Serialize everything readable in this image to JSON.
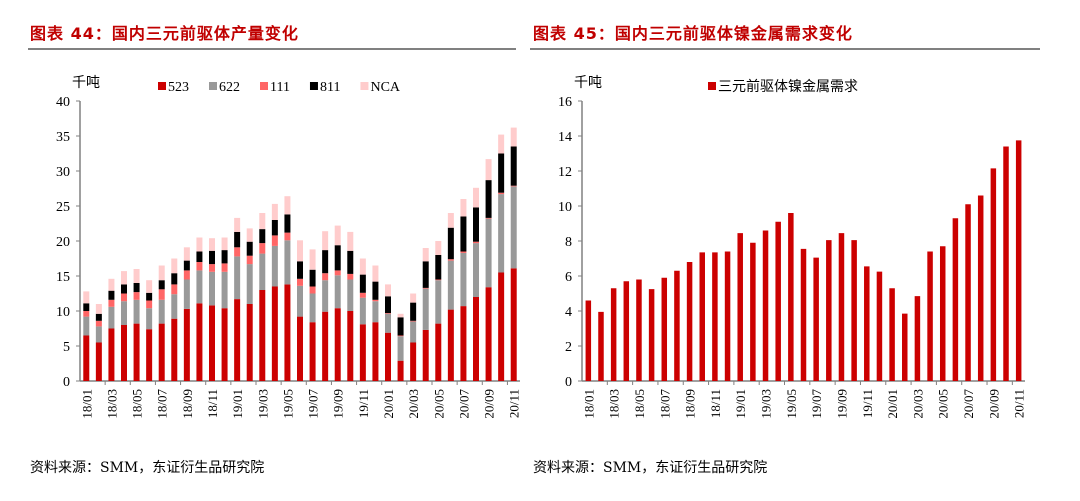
{
  "chart_data": [
    {
      "type": "bar",
      "stacked": true,
      "title": "图表 44：国内三元前驱体产量变化",
      "ylabel": "千吨",
      "ylim": [
        0,
        40
      ],
      "yticks": [
        0,
        5,
        10,
        15,
        20,
        25,
        30,
        35,
        40
      ],
      "legend_position": "top",
      "grid": false,
      "categories": [
        "18/01",
        "18/02",
        "18/03",
        "18/04",
        "18/05",
        "18/06",
        "18/07",
        "18/08",
        "18/09",
        "18/10",
        "18/11",
        "18/12",
        "19/01",
        "19/02",
        "19/03",
        "19/04",
        "19/05",
        "19/06",
        "19/07",
        "19/08",
        "19/09",
        "19/10",
        "19/11",
        "19/12",
        "20/01",
        "20/02",
        "20/03",
        "20/04",
        "20/05",
        "20/06",
        "20/07",
        "20/08",
        "20/09",
        "20/10",
        "20/11"
      ],
      "xtick_labels": [
        "18/01",
        "18/03",
        "18/05",
        "18/07",
        "18/09",
        "18/11",
        "19/01",
        "19/03",
        "19/05",
        "19/07",
        "19/09",
        "19/11",
        "20/01",
        "20/03",
        "20/05",
        "20/07",
        "20/09",
        "20/11"
      ],
      "series": [
        {
          "name": "523",
          "color": "#CC0000",
          "values": [
            6.5,
            5.5,
            7.5,
            8.0,
            8.2,
            7.4,
            8.2,
            8.9,
            10.3,
            11.1,
            10.8,
            10.4,
            11.7,
            11.0,
            13.0,
            13.5,
            13.8,
            9.2,
            8.4,
            9.9,
            10.4,
            10.0,
            8.1,
            8.4,
            6.9,
            2.9,
            5.5,
            7.3,
            8.2,
            10.2,
            10.7,
            12.0,
            13.4,
            15.5,
            16.1
          ]
        },
        {
          "name": "622",
          "color": "#999999",
          "values": [
            2.7,
            2.3,
            3.1,
            3.4,
            3.4,
            3.0,
            3.4,
            3.5,
            4.2,
            4.7,
            4.8,
            5.2,
            6.1,
            5.7,
            5.2,
            5.8,
            6.3,
            4.4,
            4.1,
            4.5,
            4.7,
            4.5,
            3.8,
            3.0,
            2.7,
            3.5,
            3.0,
            5.9,
            6.2,
            7.0,
            7.6,
            7.7,
            9.8,
            11.2,
            11.7
          ]
        },
        {
          "name": "111",
          "color": "#FF6666",
          "values": [
            0.8,
            0.8,
            1.0,
            1.1,
            1.1,
            1.1,
            1.5,
            1.4,
            1.3,
            1.2,
            1.1,
            1.2,
            1.3,
            1.2,
            1.5,
            1.5,
            1.1,
            1.0,
            1.0,
            1.0,
            0.7,
            0.8,
            0.7,
            0.2,
            0.1,
            0.1,
            0.1,
            0.1,
            0.1,
            0.2,
            0.2,
            0.2,
            0.1,
            0.2,
            0.1
          ]
        },
        {
          "name": "811",
          "color": "#000000",
          "values": [
            1.1,
            1.0,
            1.3,
            1.3,
            1.3,
            1.1,
            1.3,
            1.6,
            1.4,
            1.5,
            1.9,
            1.9,
            2.2,
            2.0,
            2.0,
            2.2,
            2.6,
            2.5,
            2.4,
            3.3,
            3.6,
            3.3,
            2.6,
            2.6,
            2.4,
            2.6,
            2.6,
            3.8,
            3.5,
            4.5,
            5.0,
            4.9,
            5.4,
            5.6,
            5.6
          ]
        },
        {
          "name": "NCA",
          "color": "#FFCCCC",
          "values": [
            1.7,
            1.4,
            1.7,
            1.9,
            2.0,
            1.8,
            2.1,
            2.1,
            1.9,
            2.0,
            1.8,
            1.8,
            2.0,
            1.9,
            2.3,
            2.3,
            2.6,
            3.0,
            2.9,
            2.7,
            2.8,
            2.7,
            2.3,
            2.3,
            1.7,
            0.5,
            1.3,
            1.9,
            2.0,
            2.1,
            2.5,
            2.8,
            3.0,
            2.7,
            2.7
          ]
        }
      ],
      "source": "资料来源：SMM，东证衍生品研究院"
    },
    {
      "type": "bar",
      "title": "图表 45：国内三元前驱体镍金属需求变化",
      "ylabel": "千吨",
      "ylim": [
        0,
        16
      ],
      "yticks": [
        0,
        2,
        4,
        6,
        8,
        10,
        12,
        14,
        16
      ],
      "legend_position": "top",
      "grid": false,
      "categories": [
        "18/01",
        "18/02",
        "18/03",
        "18/04",
        "18/05",
        "18/06",
        "18/07",
        "18/08",
        "18/09",
        "18/10",
        "18/11",
        "18/12",
        "19/01",
        "19/02",
        "19/03",
        "19/04",
        "19/05",
        "19/06",
        "19/07",
        "19/08",
        "19/09",
        "19/10",
        "19/11",
        "19/12",
        "20/01",
        "20/02",
        "20/03",
        "20/04",
        "20/05",
        "20/06",
        "20/07",
        "20/08",
        "20/09",
        "20/10",
        "20/11"
      ],
      "xtick_labels": [
        "18/01",
        "18/03",
        "18/05",
        "18/07",
        "18/09",
        "18/11",
        "19/01",
        "19/03",
        "19/05",
        "19/07",
        "19/09",
        "19/11",
        "20/01",
        "20/03",
        "20/05",
        "20/07",
        "20/09",
        "20/11"
      ],
      "series": [
        {
          "name": "三元前驱体镍金属需求",
          "color": "#CC0000",
          "values": [
            4.6,
            3.95,
            5.3,
            5.7,
            5.8,
            5.25,
            5.9,
            6.3,
            6.8,
            7.35,
            7.35,
            7.4,
            8.45,
            7.9,
            8.6,
            9.1,
            9.6,
            7.55,
            7.05,
            8.05,
            8.45,
            8.05,
            6.55,
            6.25,
            5.3,
            3.85,
            4.85,
            7.4,
            7.7,
            9.3,
            10.1,
            10.6,
            12.15,
            13.4,
            13.75
          ]
        }
      ],
      "source": "资料来源：SMM，东证衍生品研究院"
    }
  ]
}
